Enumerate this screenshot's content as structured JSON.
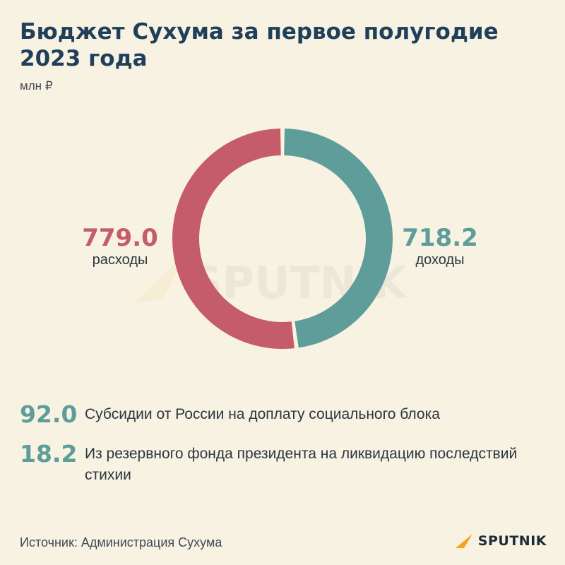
{
  "header": {
    "title": "Бюджет Сухума за первое полугодие 2023 года",
    "unit": "млн ₽"
  },
  "colors": {
    "expenses": "#c55c6a",
    "income": "#5f9d9b",
    "title": "#1f3f5b",
    "background": "#f8f2e2",
    "brand_accent": "#f3a51c"
  },
  "chart_data": {
    "type": "pie",
    "variant": "donut",
    "title": "Бюджет Сухума за первое полугодие 2023 года",
    "unit": "млн ₽",
    "slices": [
      {
        "label": "доходы",
        "value": 718.2,
        "value_label": "718.2",
        "color": "#5f9d9b"
      },
      {
        "label": "расходы",
        "value": 779.0,
        "value_label": "779.0",
        "color": "#c55c6a"
      }
    ]
  },
  "stats": [
    {
      "value": "92.0",
      "text": "Субсидии от России на доплату социального блока"
    },
    {
      "value": "18.2",
      "text": "Из резервного фонда президента на ликвидацию последствий стихии"
    }
  ],
  "footer": {
    "source": "Источник: Администрация Сухума",
    "brand": "SPUTNIK",
    "watermark": "SPUTNIK"
  }
}
